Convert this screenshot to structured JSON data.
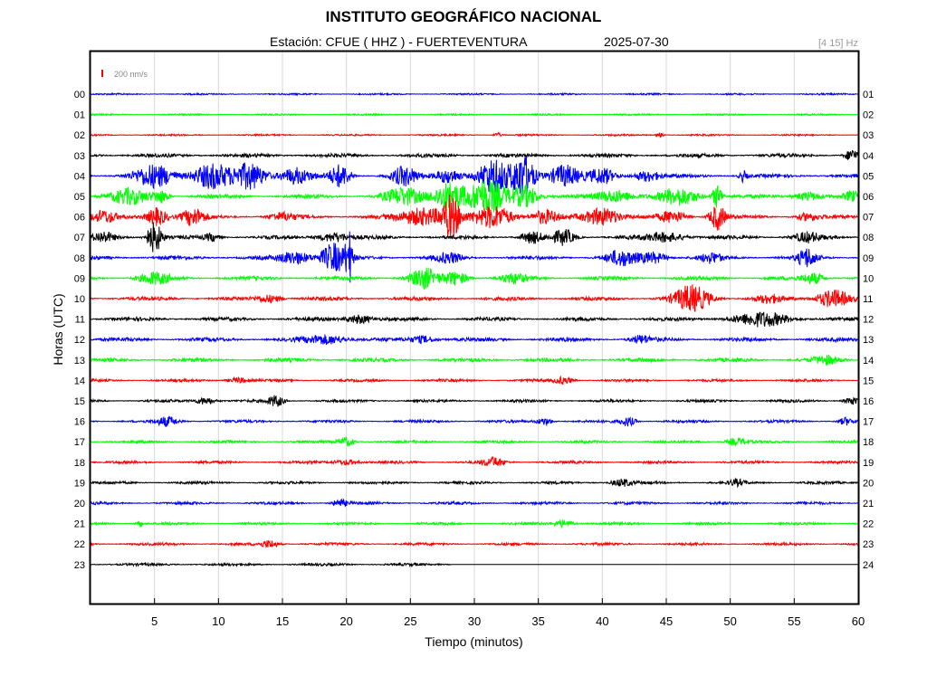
{
  "header": {
    "title": "INSTITUTO GEOGRÁFICO NACIONAL",
    "station": "Estación:  CFUE ( HHZ ) - FUERTEVENTURA",
    "date": "2025-07-30",
    "filter": "[4 15] Hz"
  },
  "chart_data": {
    "type": "line",
    "title": "INSTITUTO GEOGRÁFICO NACIONAL",
    "xlabel": "Tiempo (minutos)",
    "ylabel": "Horas (UTC)",
    "xlim": [
      0,
      60
    ],
    "x_ticks": [
      5,
      10,
      15,
      20,
      25,
      30,
      35,
      40,
      45,
      50,
      55,
      60
    ],
    "left_hour_labels": [
      "00",
      "01",
      "02",
      "03",
      "04",
      "05",
      "06",
      "07",
      "08",
      "09",
      "10",
      "11",
      "12",
      "13",
      "14",
      "15",
      "16",
      "17",
      "18",
      "19",
      "20",
      "21",
      "22",
      "23"
    ],
    "right_hour_labels": [
      "01",
      "02",
      "03",
      "04",
      "05",
      "06",
      "07",
      "08",
      "09",
      "10",
      "11",
      "12",
      "13",
      "14",
      "15",
      "16",
      "17",
      "18",
      "19",
      "20",
      "21",
      "22",
      "23",
      "24"
    ],
    "scale_bar": {
      "label": "200 nm/s",
      "color": "#ff0000"
    },
    "grid": true,
    "trace_colors": [
      "#0000ff",
      "#00ff00",
      "#ff0000",
      "#000000"
    ],
    "last_trace_end_minute": 28.2,
    "bursts": [
      {
        "hour": 2,
        "minute": 31.8,
        "amp": 2.5,
        "width": 0.3
      },
      {
        "hour": 2,
        "minute": 44.5,
        "amp": 2.5,
        "width": 0.3
      },
      {
        "hour": 3,
        "minute": 59.5,
        "amp": 6,
        "width": 0.5
      },
      {
        "hour": 4,
        "minute": 5,
        "amp": 12,
        "width": 1.5
      },
      {
        "hour": 4,
        "minute": 9.5,
        "amp": 14,
        "width": 1.5
      },
      {
        "hour": 4,
        "minute": 12.5,
        "amp": 14,
        "width": 1.2
      },
      {
        "hour": 4,
        "minute": 16,
        "amp": 9,
        "width": 1.2
      },
      {
        "hour": 4,
        "minute": 19.5,
        "amp": 12,
        "width": 0.8
      },
      {
        "hour": 4,
        "minute": 24.5,
        "amp": 10,
        "width": 1.0
      },
      {
        "hour": 4,
        "minute": 28,
        "amp": 8,
        "width": 1.0
      },
      {
        "hour": 4,
        "minute": 31.5,
        "amp": 18,
        "width": 1.2
      },
      {
        "hour": 4,
        "minute": 33.8,
        "amp": 24,
        "width": 0.9
      },
      {
        "hour": 4,
        "minute": 37,
        "amp": 12,
        "width": 1.2
      },
      {
        "hour": 4,
        "minute": 40,
        "amp": 8,
        "width": 1.0
      },
      {
        "hour": 4,
        "minute": 43.5,
        "amp": 6,
        "width": 1.0
      },
      {
        "hour": 4,
        "minute": 51,
        "amp": 6,
        "width": 0.3
      },
      {
        "hour": 5,
        "minute": 3,
        "amp": 8,
        "width": 1.5
      },
      {
        "hour": 5,
        "minute": 5.5,
        "amp": 7,
        "width": 0.6
      },
      {
        "hour": 5,
        "minute": 24.5,
        "amp": 9,
        "width": 1.5
      },
      {
        "hour": 5,
        "minute": 28,
        "amp": 16,
        "width": 1.2
      },
      {
        "hour": 5,
        "minute": 31,
        "amp": 18,
        "width": 1.6
      },
      {
        "hour": 5,
        "minute": 34,
        "amp": 12,
        "width": 1.0
      },
      {
        "hour": 5,
        "minute": 41,
        "amp": 7,
        "width": 1.5
      },
      {
        "hour": 5,
        "minute": 46,
        "amp": 9,
        "width": 1.5
      },
      {
        "hour": 5,
        "minute": 49,
        "amp": 13,
        "width": 0.4
      },
      {
        "hour": 5,
        "minute": 56,
        "amp": 5,
        "width": 1.0
      },
      {
        "hour": 5,
        "minute": 59.5,
        "amp": 5,
        "width": 0.5
      },
      {
        "hour": 6,
        "minute": 1,
        "amp": 6,
        "width": 1.0
      },
      {
        "hour": 6,
        "minute": 5.2,
        "amp": 10,
        "width": 0.8
      },
      {
        "hour": 6,
        "minute": 8,
        "amp": 9,
        "width": 0.9
      },
      {
        "hour": 6,
        "minute": 15,
        "amp": 4,
        "width": 1.0
      },
      {
        "hour": 6,
        "minute": 26,
        "amp": 10,
        "width": 1.8
      },
      {
        "hour": 6,
        "minute": 28.2,
        "amp": 22,
        "width": 0.7
      },
      {
        "hour": 6,
        "minute": 31.5,
        "amp": 12,
        "width": 1.5
      },
      {
        "hour": 6,
        "minute": 35.5,
        "amp": 7,
        "width": 1.0
      },
      {
        "hour": 6,
        "minute": 40,
        "amp": 10,
        "width": 1.4
      },
      {
        "hour": 6,
        "minute": 45.5,
        "amp": 6,
        "width": 1.0
      },
      {
        "hour": 6,
        "minute": 49,
        "amp": 14,
        "width": 0.6
      },
      {
        "hour": 6,
        "minute": 56,
        "amp": 4,
        "width": 0.8
      },
      {
        "hour": 7,
        "minute": 5,
        "amp": 17,
        "width": 0.6
      },
      {
        "hour": 7,
        "minute": 1,
        "amp": 5,
        "width": 0.8
      },
      {
        "hour": 7,
        "minute": 9.5,
        "amp": 4,
        "width": 0.5
      },
      {
        "hour": 7,
        "minute": 19,
        "amp": 5,
        "width": 1.2
      },
      {
        "hour": 7,
        "minute": 34.5,
        "amp": 6,
        "width": 0.8
      },
      {
        "hour": 7,
        "minute": 37,
        "amp": 8,
        "width": 0.8
      },
      {
        "hour": 7,
        "minute": 45,
        "amp": 5,
        "width": 1.5
      },
      {
        "hour": 7,
        "minute": 56,
        "amp": 5,
        "width": 1.0
      },
      {
        "hour": 8,
        "minute": 16,
        "amp": 7,
        "width": 1.2
      },
      {
        "hour": 8,
        "minute": 19,
        "amp": 16,
        "width": 1.0
      },
      {
        "hour": 8,
        "minute": 20.2,
        "amp": 28,
        "width": 0.25
      },
      {
        "hour": 8,
        "minute": 28,
        "amp": 5,
        "width": 1.0
      },
      {
        "hour": 8,
        "minute": 41.5,
        "amp": 8,
        "width": 1.2
      },
      {
        "hour": 8,
        "minute": 44,
        "amp": 6,
        "width": 1.0
      },
      {
        "hour": 8,
        "minute": 48.5,
        "amp": 5,
        "width": 0.8
      },
      {
        "hour": 8,
        "minute": 56,
        "amp": 10,
        "width": 0.7
      },
      {
        "hour": 9,
        "minute": 5,
        "amp": 6,
        "width": 1.2
      },
      {
        "hour": 9,
        "minute": 26,
        "amp": 11,
        "width": 1.0
      },
      {
        "hour": 9,
        "minute": 28.5,
        "amp": 7,
        "width": 1.0
      },
      {
        "hour": 9,
        "minute": 33,
        "amp": 5,
        "width": 1.0
      },
      {
        "hour": 9,
        "minute": 56.5,
        "amp": 6,
        "width": 0.8
      },
      {
        "hour": 10,
        "minute": 47,
        "amp": 14,
        "width": 1.4
      },
      {
        "hour": 10,
        "minute": 58,
        "amp": 10,
        "width": 1.2
      },
      {
        "hour": 10,
        "minute": 53,
        "amp": 4,
        "width": 1.0
      },
      {
        "hour": 10,
        "minute": 14,
        "amp": 4,
        "width": 1.0
      },
      {
        "hour": 11,
        "minute": 21,
        "amp": 5,
        "width": 1.0
      },
      {
        "hour": 11,
        "minute": 52.5,
        "amp": 7,
        "width": 2.2
      },
      {
        "hour": 12,
        "minute": 18.5,
        "amp": 5,
        "width": 1.6
      },
      {
        "hour": 12,
        "minute": 26,
        "amp": 4,
        "width": 1.0
      },
      {
        "hour": 12,
        "minute": 43,
        "amp": 4,
        "width": 0.8
      },
      {
        "hour": 13,
        "minute": 57.5,
        "amp": 4,
        "width": 1.0
      },
      {
        "hour": 14,
        "minute": 37,
        "amp": 4,
        "width": 0.7
      },
      {
        "hour": 14,
        "minute": 11.5,
        "amp": 3,
        "width": 0.8
      },
      {
        "hour": 15,
        "minute": 9,
        "amp": 4,
        "width": 0.8
      },
      {
        "hour": 15,
        "minute": 14.5,
        "amp": 6,
        "width": 0.6
      },
      {
        "hour": 15,
        "minute": 59.5,
        "amp": 4,
        "width": 0.6
      },
      {
        "hour": 16,
        "minute": 6,
        "amp": 5,
        "width": 0.8
      },
      {
        "hour": 16,
        "minute": 35.5,
        "amp": 4,
        "width": 0.6
      },
      {
        "hour": 16,
        "minute": 42,
        "amp": 5,
        "width": 0.6
      },
      {
        "hour": 16,
        "minute": 59,
        "amp": 4,
        "width": 0.5
      },
      {
        "hour": 17,
        "minute": 20,
        "amp": 5,
        "width": 0.6
      },
      {
        "hour": 17,
        "minute": 50.5,
        "amp": 4,
        "width": 0.8
      },
      {
        "hour": 18,
        "minute": 31.5,
        "amp": 5,
        "width": 0.8
      },
      {
        "hour": 18,
        "minute": 20,
        "amp": 3,
        "width": 1.0
      },
      {
        "hour": 19,
        "minute": 41.5,
        "amp": 4,
        "width": 0.8
      },
      {
        "hour": 19,
        "minute": 50.5,
        "amp": 3,
        "width": 0.6
      },
      {
        "hour": 20,
        "minute": 19.5,
        "amp": 4,
        "width": 0.6
      },
      {
        "hour": 21,
        "minute": 3.8,
        "amp": 4,
        "width": 0.25
      },
      {
        "hour": 21,
        "minute": 37,
        "amp": 4,
        "width": 0.8
      },
      {
        "hour": 22,
        "minute": 14,
        "amp": 4,
        "width": 0.7
      }
    ]
  }
}
